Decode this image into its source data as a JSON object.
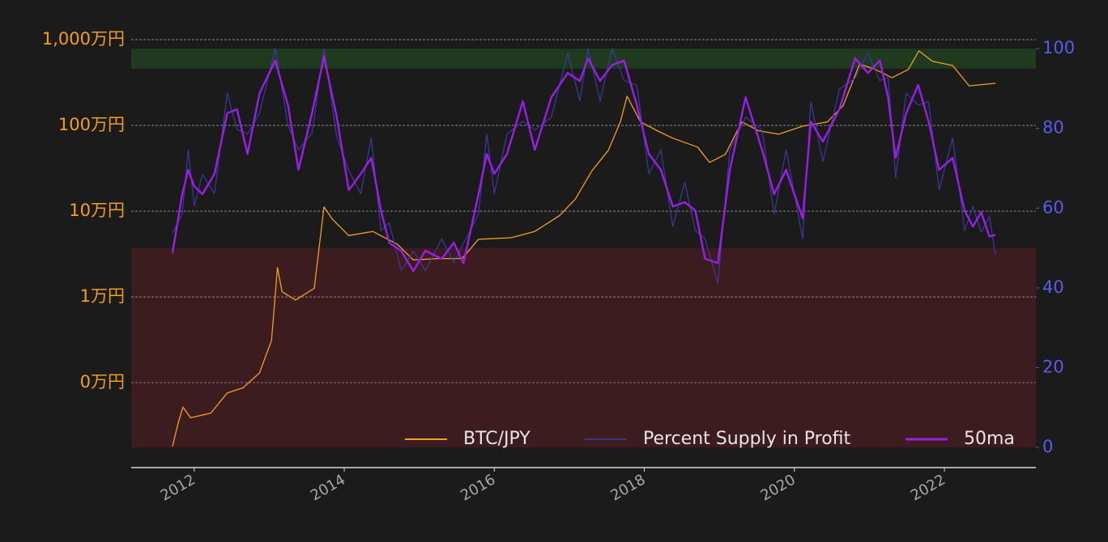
{
  "chart_data": {
    "type": "line",
    "log_y": true,
    "grid": true,
    "legend": "lower right",
    "xlim": [
      2011.16,
      2023.22
    ],
    "xticks": [
      2012,
      2014,
      2016,
      2018,
      2020,
      2022
    ],
    "ylim": [
      176,
      13000000
    ],
    "yticks": [
      {
        "value": 1000,
        "label": "0万円"
      },
      {
        "value": 10000,
        "label": "1万円"
      },
      {
        "value": 100000,
        "label": "10万円"
      },
      {
        "value": 1000000,
        "label": "100万円"
      },
      {
        "value": 10000000,
        "label": "1,000万円"
      }
    ],
    "y2lim": [
      0,
      104.7
    ],
    "y2ticks": [
      0,
      20,
      40,
      60,
      80,
      100
    ],
    "bands": [
      {
        "axis": "y2",
        "from": 95,
        "to": 100,
        "color": "#1f3a1f"
      },
      {
        "axis": "y2",
        "from": 0,
        "to": 50,
        "color": "#3d1c20"
      }
    ],
    "series": [
      {
        "name": "BTC/JPY",
        "color": "#f0a01e",
        "width": 1.3,
        "x": [
          2011.71,
          2011.79,
          2011.85,
          2011.95,
          2012.22,
          2012.44,
          2012.65,
          2012.87,
          2013.03,
          2013.11,
          2013.17,
          2013.35,
          2013.6,
          2013.73,
          2013.84,
          2014.06,
          2014.38,
          2014.71,
          2014.92,
          2015.25,
          2015.57,
          2015.79,
          2016.22,
          2016.54,
          2016.87,
          2017.08,
          2017.3,
          2017.52,
          2017.68,
          2017.77,
          2017.95,
          2018.17,
          2018.38,
          2018.71,
          2018.87,
          2019.08,
          2019.3,
          2019.52,
          2019.79,
          2020.11,
          2020.44,
          2020.65,
          2020.87,
          2021.08,
          2021.3,
          2021.52,
          2021.66,
          2021.84,
          2022.11,
          2022.33,
          2022.68
        ],
        "values": [
          180,
          350,
          520,
          390,
          440,
          760,
          870,
          1300,
          3100,
          22000,
          11500,
          9200,
          12600,
          112000,
          81000,
          52000,
          58000,
          41000,
          27000,
          28000,
          28000,
          47000,
          49000,
          58000,
          89000,
          138000,
          295000,
          513000,
          1100000,
          2190000,
          1100000,
          870000,
          710000,
          560000,
          370000,
          460000,
          1100000,
          870000,
          790000,
          980000,
          1100000,
          1700000,
          5200000,
          4500000,
          3600000,
          4500000,
          7400000,
          5600000,
          5000000,
          2900000,
          3100000
        ]
      },
      {
        "name": "Percent Supply in Profit",
        "color": "#3a3aa0",
        "width": 1.2,
        "axis": "y2",
        "x": [
          2011.71,
          2011.84,
          2011.92,
          2012.0,
          2012.11,
          2012.27,
          2012.44,
          2012.57,
          2012.71,
          2012.87,
          2013.08,
          2013.25,
          2013.39,
          2013.57,
          2013.73,
          2013.9,
          2014.06,
          2014.22,
          2014.36,
          2014.49,
          2014.6,
          2014.76,
          2014.92,
          2015.08,
          2015.3,
          2015.46,
          2015.59,
          2015.79,
          2015.9,
          2016.0,
          2016.17,
          2016.38,
          2016.54,
          2016.76,
          2016.98,
          2017.14,
          2017.25,
          2017.41,
          2017.57,
          2017.73,
          2017.9,
          2018.06,
          2018.22,
          2018.38,
          2018.54,
          2018.68,
          2018.81,
          2018.98,
          2019.14,
          2019.35,
          2019.57,
          2019.73,
          2019.89,
          2020.11,
          2020.22,
          2020.38,
          2020.6,
          2020.81,
          2020.98,
          2021.14,
          2021.25,
          2021.35,
          2021.49,
          2021.65,
          2021.79,
          2021.93,
          2022.11,
          2022.27,
          2022.38,
          2022.49,
          2022.6,
          2022.68
        ],
        "values": [
          53.7,
          58.5,
          74.6,
          60.5,
          68.5,
          63.6,
          88.8,
          79.8,
          78.6,
          83.8,
          100,
          80.8,
          74.6,
          78.8,
          100,
          77.8,
          69.5,
          63.6,
          77.6,
          54.4,
          56.3,
          44.3,
          49.2,
          44.3,
          52.3,
          46.3,
          51.2,
          58.5,
          78.6,
          63.6,
          78.6,
          81.8,
          79.6,
          82.8,
          98.9,
          86.9,
          100,
          86.9,
          100,
          92.0,
          90.8,
          68.6,
          74.6,
          55.4,
          66.5,
          54.4,
          52.3,
          41.2,
          74.6,
          82.8,
          79.6,
          58.5,
          74.6,
          52.4,
          86.7,
          71.7,
          89.8,
          92.6,
          98.9,
          92.0,
          92.8,
          67.6,
          88.8,
          85.9,
          86.7,
          64.6,
          77.6,
          54.4,
          60.4,
          54.0,
          57.9,
          48.3
        ]
      },
      {
        "name": "50ma",
        "color": "#9b1ee6",
        "width": 2.4,
        "axis": "y2",
        "x": [
          2011.71,
          2011.84,
          2011.92,
          2012.0,
          2012.11,
          2012.27,
          2012.44,
          2012.57,
          2012.71,
          2012.87,
          2013.08,
          2013.25,
          2013.39,
          2013.57,
          2013.73,
          2013.9,
          2014.06,
          2014.22,
          2014.36,
          2014.49,
          2014.6,
          2014.76,
          2014.92,
          2015.08,
          2015.3,
          2015.46,
          2015.59,
          2015.79,
          2015.9,
          2016.0,
          2016.17,
          2016.38,
          2016.54,
          2016.76,
          2016.98,
          2017.14,
          2017.25,
          2017.41,
          2017.57,
          2017.73,
          2017.9,
          2018.06,
          2018.22,
          2018.38,
          2018.54,
          2018.68,
          2018.81,
          2018.98,
          2019.14,
          2019.35,
          2019.57,
          2019.73,
          2019.89,
          2020.11,
          2020.22,
          2020.38,
          2020.6,
          2020.81,
          2020.98,
          2021.14,
          2021.25,
          2021.35,
          2021.49,
          2021.65,
          2021.79,
          2021.93,
          2022.11,
          2022.27,
          2022.38,
          2022.49,
          2022.6,
          2022.68
        ],
        "values": [
          48.7,
          63.5,
          69.6,
          65.5,
          63.5,
          68.6,
          83.8,
          84.8,
          73.6,
          88.8,
          97.0,
          85.8,
          69.6,
          83.8,
          98.0,
          82.8,
          64.5,
          68.6,
          72.6,
          59.4,
          51.3,
          49.3,
          44.2,
          49.3,
          47.3,
          51.3,
          46.2,
          63.5,
          73.6,
          68.6,
          73.6,
          86.8,
          74.6,
          87.8,
          93.9,
          91.9,
          97.6,
          91.9,
          95.9,
          97.0,
          85.8,
          73.6,
          69.6,
          60.4,
          61.5,
          59.4,
          47.3,
          46.2,
          69.6,
          87.8,
          74.6,
          63.5,
          69.6,
          57.4,
          81.7,
          76.7,
          84.8,
          97.6,
          93.9,
          97.0,
          87.8,
          72.6,
          83.8,
          90.9,
          81.7,
          69.6,
          72.6,
          59.4,
          55.4,
          59.0,
          52.9,
          53.3
        ]
      }
    ]
  }
}
